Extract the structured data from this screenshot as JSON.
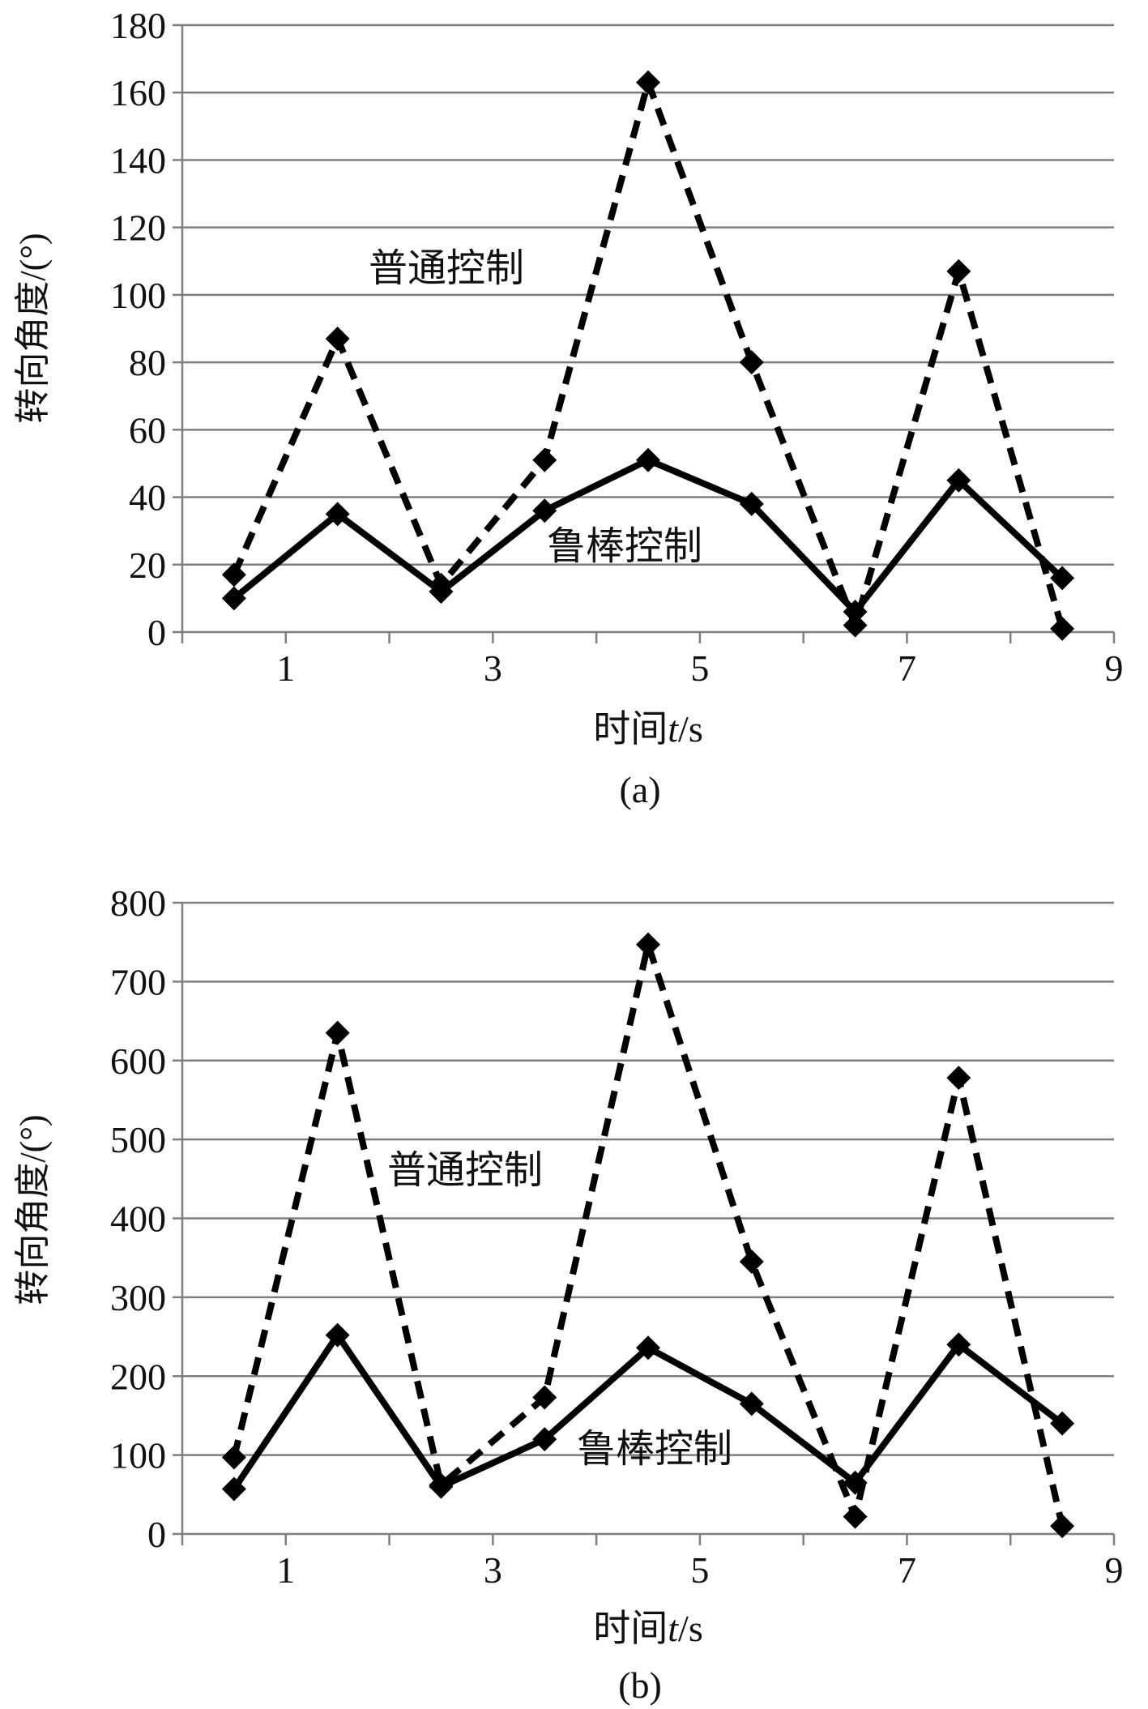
{
  "chart_data": [
    {
      "type": "line",
      "caption": "(a)",
      "xlabel_main": "时间",
      "xlabel_var": "t",
      "xlabel_unit": "/s",
      "ylabel": "转向角度/(°)",
      "xlim": [
        0,
        9
      ],
      "ylim": [
        0,
        180
      ],
      "x_ticks": [
        1,
        3,
        5,
        7,
        9
      ],
      "y_ticks": [
        0,
        20,
        40,
        60,
        80,
        100,
        120,
        140,
        160,
        180
      ],
      "grid": "horizontal",
      "x": [
        0.5,
        1.5,
        2.5,
        3.5,
        4.5,
        5.5,
        6.5,
        7.5,
        8.5
      ],
      "series": [
        {
          "name": "普通控制",
          "style": "dashed",
          "values": [
            17,
            87,
            14,
            51,
            163,
            80,
            2,
            107,
            1
          ]
        },
        {
          "name": "鲁棒控制",
          "style": "solid",
          "values": [
            10,
            35,
            12,
            36,
            51,
            38,
            6,
            45,
            16
          ]
        }
      ]
    },
    {
      "type": "line",
      "caption": "(b)",
      "xlabel_main": "时间",
      "xlabel_var": "t",
      "xlabel_unit": "/s",
      "ylabel": "转向角度/(°)",
      "xlim": [
        0,
        9
      ],
      "ylim": [
        0,
        800
      ],
      "x_ticks": [
        1,
        3,
        5,
        7,
        9
      ],
      "y_ticks": [
        0,
        100,
        200,
        300,
        400,
        500,
        600,
        700,
        800
      ],
      "grid": "horizontal",
      "x": [
        0.5,
        1.5,
        2.5,
        3.5,
        4.5,
        5.5,
        6.5,
        7.5,
        8.5
      ],
      "series": [
        {
          "name": "普通控制",
          "style": "dashed",
          "values": [
            97,
            635,
            62,
            173,
            747,
            345,
            22,
            578,
            10
          ]
        },
        {
          "name": "鲁棒控制",
          "style": "solid",
          "values": [
            57,
            252,
            60,
            120,
            236,
            165,
            65,
            240,
            140
          ]
        }
      ]
    }
  ]
}
